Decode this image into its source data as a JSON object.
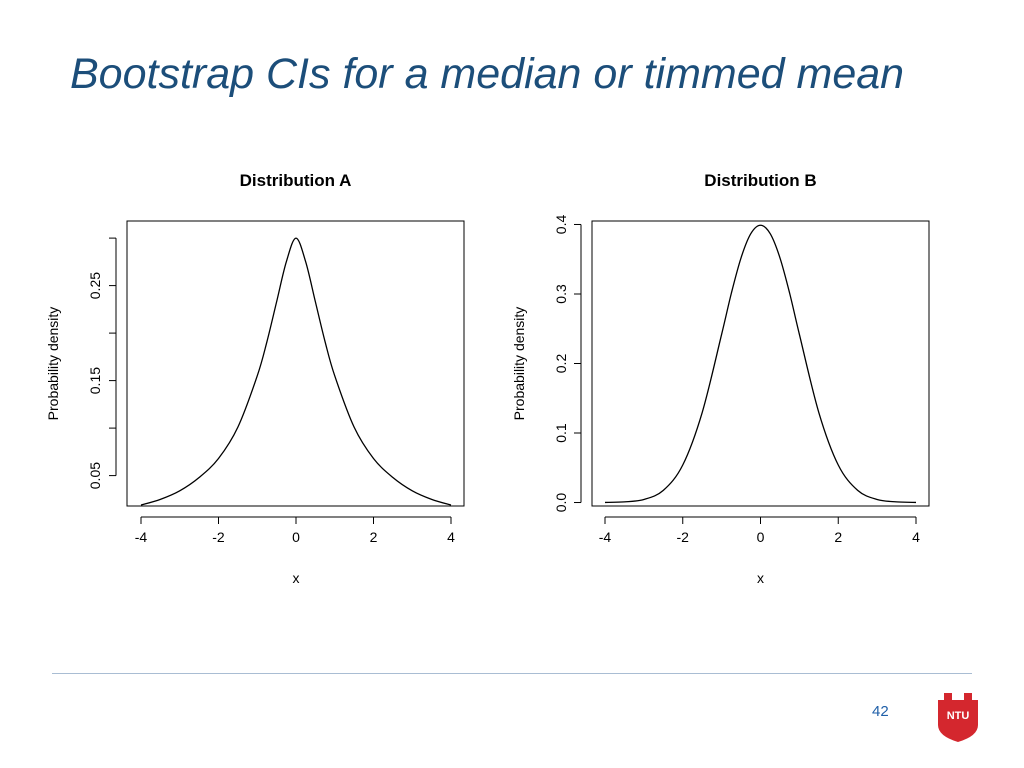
{
  "slide": {
    "title": "Bootstrap CIs for a median or timmed mean",
    "page_number": "42",
    "logo_text": "NTU",
    "colors": {
      "title": "#1c4e7a",
      "rule": "#a9bdd3",
      "page_number": "#1f5fa8",
      "logo": "#d4272e",
      "curve": "#000000"
    }
  },
  "chart_data": [
    {
      "type": "line",
      "title": "Distribution A",
      "xlabel": "x",
      "ylabel": "Probability density",
      "xlim": [
        -4,
        4
      ],
      "ylim": [
        0.018,
        0.318
      ],
      "xticks": [
        -4,
        -2,
        0,
        2,
        4
      ],
      "yticks": [
        0.05,
        0.15,
        0.25
      ],
      "yticks_minor": [
        0.1,
        0.2,
        0.3
      ],
      "ytick_labels": [
        "0.05",
        "0.15",
        "0.25"
      ],
      "grid": false,
      "series": [
        {
          "x": [
            -4,
            -3.5,
            -3,
            -2.5,
            -2,
            -1.5,
            -1,
            -0.75,
            -0.5,
            -0.25,
            0,
            0.25,
            0.5,
            0.75,
            1,
            1.5,
            2,
            2.5,
            3,
            3.5,
            4
          ],
          "y": [
            0.019,
            0.025,
            0.034,
            0.048,
            0.068,
            0.101,
            0.155,
            0.191,
            0.233,
            0.275,
            0.3,
            0.275,
            0.233,
            0.191,
            0.155,
            0.101,
            0.068,
            0.048,
            0.034,
            0.025,
            0.019
          ]
        }
      ]
    },
    {
      "type": "line",
      "title": "Distribution B",
      "xlabel": "x",
      "ylabel": "Probability density",
      "xlim": [
        -4,
        4
      ],
      "ylim": [
        -0.005,
        0.405
      ],
      "xticks": [
        -4,
        -2,
        0,
        2,
        4
      ],
      "yticks": [
        0.0,
        0.1,
        0.2,
        0.3,
        0.4
      ],
      "ytick_labels": [
        "0.0",
        "0.1",
        "0.2",
        "0.3",
        "0.4"
      ],
      "grid": false,
      "series": [
        {
          "x": [
            -4,
            -3.5,
            -3,
            -2.5,
            -2,
            -1.5,
            -1,
            -0.75,
            -0.5,
            -0.25,
            0,
            0.25,
            0.5,
            0.75,
            1,
            1.5,
            2,
            2.5,
            3,
            3.5,
            4
          ],
          "y": [
            0.0001,
            0.0009,
            0.0044,
            0.0175,
            0.054,
            0.1295,
            0.242,
            0.3011,
            0.3521,
            0.3867,
            0.3989,
            0.3867,
            0.3521,
            0.3011,
            0.242,
            0.1295,
            0.054,
            0.0175,
            0.0044,
            0.0009,
            0.0001
          ]
        }
      ]
    }
  ]
}
